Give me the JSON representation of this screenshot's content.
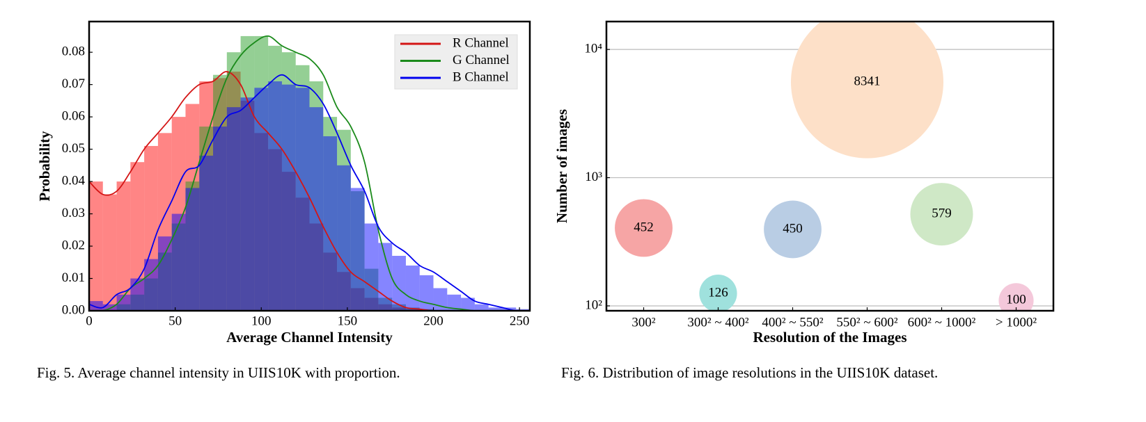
{
  "chart_data": [
    {
      "type": "histogram",
      "caption": "Fig. 5.  Average channel intensity in UIIS10K with proportion.",
      "x_label": "Average Channel  Intensity",
      "y_label": "Probability",
      "xlim": [
        0,
        256
      ],
      "ylim": [
        0,
        0.0895
      ],
      "xticks": [
        0,
        50,
        100,
        150,
        200,
        250
      ],
      "yticks": [
        {
          "value": 0,
          "label": "0.00"
        },
        {
          "value": 0.01,
          "label": "0.01"
        },
        {
          "value": 0.02,
          "label": "0.02"
        },
        {
          "value": 0.03,
          "label": "0.03"
        },
        {
          "value": 0.04,
          "label": "0.04"
        },
        {
          "value": 0.05,
          "label": "0.05"
        },
        {
          "value": 0.06,
          "label": "0.06"
        },
        {
          "value": 0.07,
          "label": "0.07"
        },
        {
          "value": 0.08,
          "label": "0.08"
        }
      ],
      "legend": "upper right",
      "bins": [
        0,
        8,
        16,
        24,
        32,
        40,
        48,
        56,
        64,
        72,
        80,
        88,
        96,
        104,
        112,
        120,
        128,
        136,
        144,
        152,
        160,
        168,
        176,
        184,
        192,
        200,
        208,
        216,
        224,
        232,
        240,
        248,
        256
      ],
      "series": [
        {
          "name": "R Channel",
          "color": "#ff0000",
          "line_color": "#d41515",
          "values": [
            0.04,
            0.036,
            0.04,
            0.046,
            0.051,
            0.055,
            0.06,
            0.064,
            0.071,
            0.072,
            0.074,
            0.065,
            0.055,
            0.05,
            0.043,
            0.035,
            0.027,
            0.018,
            0.012,
            0.007,
            0.004,
            0.002,
            0.001,
            0.0005,
            0,
            0,
            0,
            0,
            0,
            0,
            0,
            0
          ],
          "kde": [
            0.04,
            0.036,
            0.037,
            0.043,
            0.05,
            0.055,
            0.06,
            0.066,
            0.07,
            0.071,
            0.074,
            0.07,
            0.06,
            0.055,
            0.05,
            0.043,
            0.035,
            0.026,
            0.018,
            0.012,
            0.009,
            0.006,
            0.003,
            0.001,
            0.0005,
            0,
            0,
            0,
            0,
            0,
            0,
            0,
            0
          ]
        },
        {
          "name": "G Channel",
          "color": "#1f9a1f",
          "line_color": "#1a8a1a",
          "values": [
            0,
            0,
            0.002,
            0.005,
            0.01,
            0.018,
            0.027,
            0.04,
            0.057,
            0.073,
            0.08,
            0.085,
            0.085,
            0.082,
            0.08,
            0.076,
            0.071,
            0.06,
            0.056,
            0.037,
            0.013,
            0.004,
            0.002,
            0.001,
            0.0005,
            0,
            0,
            0,
            0,
            0,
            0,
            0
          ],
          "kde": [
            0,
            0,
            0.002,
            0.007,
            0.01,
            0.014,
            0.022,
            0.032,
            0.046,
            0.06,
            0.072,
            0.079,
            0.083,
            0.085,
            0.082,
            0.08,
            0.078,
            0.073,
            0.063,
            0.057,
            0.046,
            0.025,
            0.01,
            0.005,
            0.003,
            0.002,
            0.001,
            0.0005,
            0,
            0,
            0,
            0,
            0
          ]
        },
        {
          "name": "B Channel",
          "color": "#0000ff",
          "line_color": "#0000ee",
          "values": [
            0.003,
            0.002,
            0.005,
            0.01,
            0.016,
            0.023,
            0.03,
            0.038,
            0.048,
            0.057,
            0.063,
            0.066,
            0.069,
            0.071,
            0.07,
            0.069,
            0.063,
            0.054,
            0.045,
            0.038,
            0.027,
            0.021,
            0.017,
            0.014,
            0.011,
            0.007,
            0.005,
            0.004,
            0.002,
            0.001,
            0.001,
            0.0005
          ],
          "kde": [
            0.002,
            0.001,
            0.005,
            0.007,
            0.013,
            0.025,
            0.034,
            0.043,
            0.045,
            0.053,
            0.06,
            0.062,
            0.066,
            0.07,
            0.073,
            0.07,
            0.069,
            0.064,
            0.055,
            0.045,
            0.037,
            0.026,
            0.021,
            0.018,
            0.014,
            0.012,
            0.009,
            0.006,
            0.003,
            0.002,
            0.001,
            0,
            0
          ]
        }
      ]
    },
    {
      "type": "bubble",
      "caption": "Fig. 6.  Distribution of image resolutions in the UIIS10K dataset.",
      "x_label": "Resolution of the Images",
      "y_label": "Number of images",
      "log_y": true,
      "grid": true,
      "ylim": [
        91.6,
        16500
      ],
      "yticks": [
        {
          "value": 100,
          "label": "10²"
        },
        {
          "value": 1000,
          "label": "10³"
        },
        {
          "value": 10000,
          "label": "10⁴"
        }
      ],
      "categories": [
        "300²",
        "300² ~ 400²",
        "400² ~ 550²",
        "550² ~ 600²",
        "600² ~ 1000²",
        "> 1000²"
      ],
      "y": [
        405,
        125,
        395,
        5560,
        519,
        110
      ],
      "sizes": [
        452,
        126,
        450,
        8341,
        579,
        100
      ],
      "colors": [
        "#f6a5a5",
        "#9fe1dd",
        "#b9cde4",
        "#fde0c8",
        "#cfe8c6",
        "#f4c8da"
      ]
    }
  ]
}
